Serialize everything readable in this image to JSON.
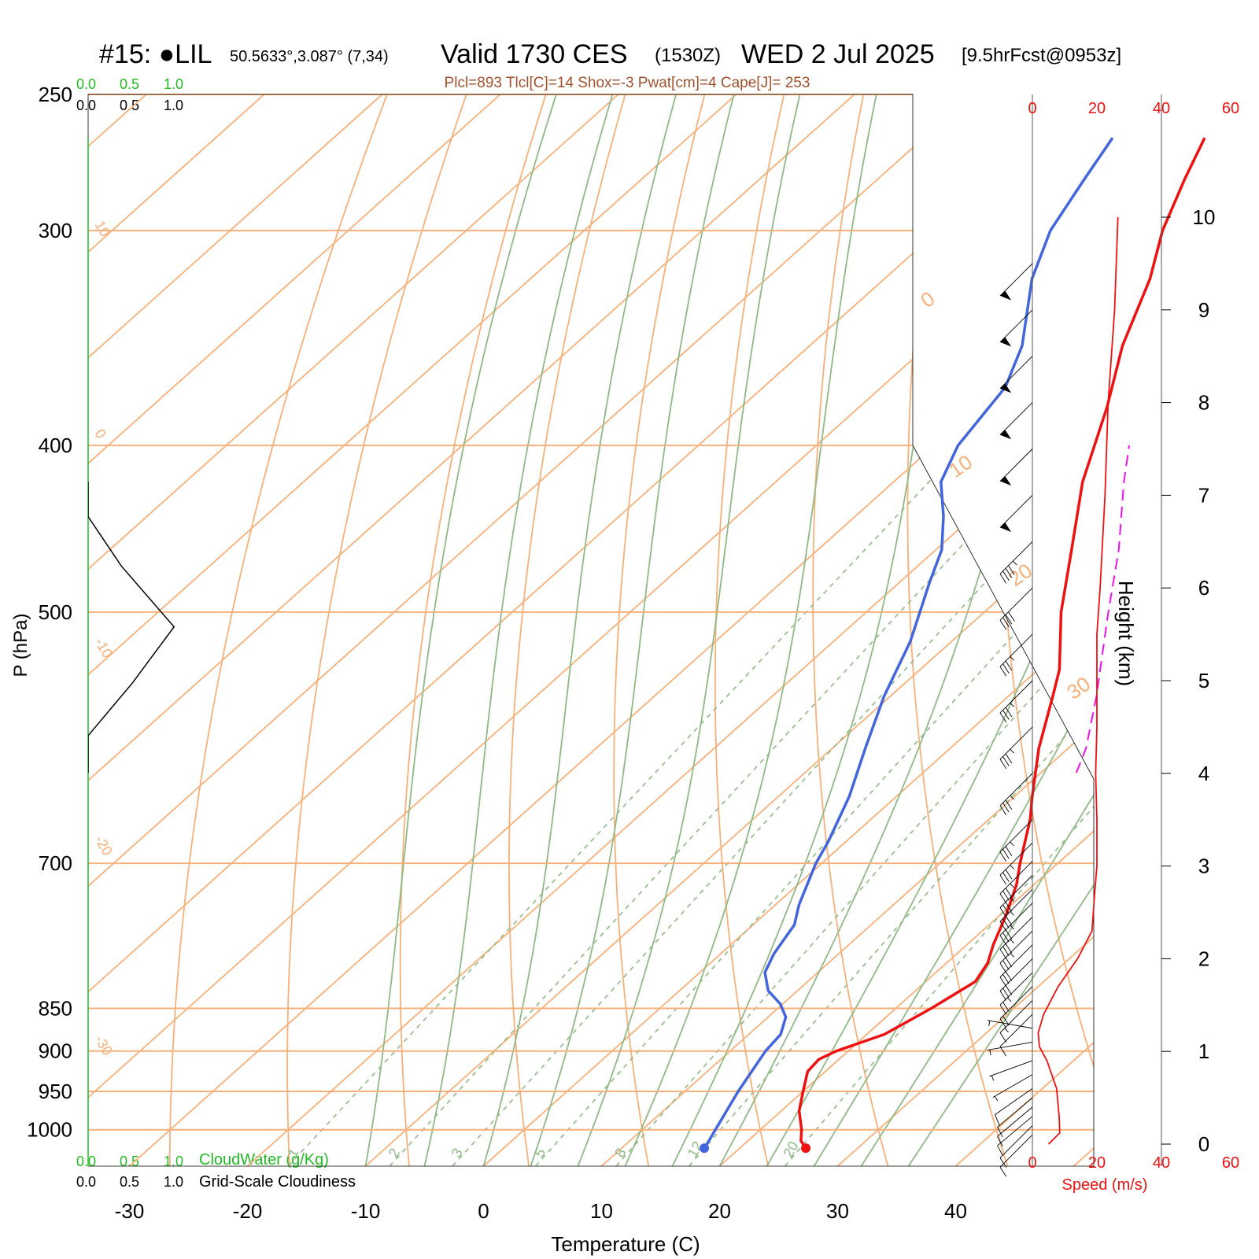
{
  "header": {
    "station_id": "#15: ●LIL",
    "location": "50.5633°,3.087° (7,34)",
    "valid_label": "Valid 1730 CES",
    "utc": "(1530Z)",
    "date": "WED 2 Jul 2025",
    "forecast": "[9.5hrFcst@0953z]",
    "indices": "Plcl=893 Tlcl[C]=14 Shox=-3 Pwat[cm]=4 Cape[J]= 253"
  },
  "cloud_scale": {
    "ticks": [
      "0.0",
      "0.5",
      "1.0"
    ],
    "cloudwater_label": "CloudWater (g/Kg)",
    "cloudiness_label": "Grid-Scale Cloudiness"
  },
  "axes": {
    "x_label": "Temperature (C)",
    "y_label": "P (hPa)",
    "height_label": "Height (km)",
    "speed_label": "Speed (m/s)"
  },
  "colors": {
    "isotherm": "#f7b07a",
    "dry_adiabat": "#8fb985",
    "moist_adiabat": "#8fb985",
    "temperature": "#ee1111",
    "dewpoint": "#4466dd",
    "parcel": "#ee11ee",
    "wind_speed": "#ee1111",
    "cloudwater": "#22bb22",
    "indices_text": "#a0522d"
  },
  "chart_data": {
    "type": "skew-t",
    "pressure_ticks": [
      250,
      300,
      400,
      500,
      700,
      850,
      900,
      950,
      1000
    ],
    "pressure_range": [
      1050,
      250
    ],
    "temperature_ticks": [
      -30,
      -20,
      -10,
      0,
      10,
      20,
      30,
      40
    ],
    "temperature_range_at_surface": [
      -33.5,
      45.5
    ],
    "height_ticks_km": [
      0,
      1,
      2,
      3,
      4,
      5,
      6,
      7,
      8,
      9,
      10
    ],
    "speed_ticks": [
      0,
      20,
      40,
      60
    ],
    "speed_range": [
      0,
      60
    ],
    "isotherm_labels": [
      "10",
      "0",
      "-10",
      "-20",
      "-30",
      "0",
      "10",
      "20",
      "30"
    ],
    "mixing_ratio_labels": [
      "1",
      "2",
      "3",
      "5",
      "8",
      "12",
      "20"
    ],
    "mixing_ratio_values": [
      1,
      2,
      3,
      5,
      8,
      12,
      20
    ],
    "temperature_profile": [
      {
        "p": 1025,
        "t": 25.6
      },
      {
        "p": 1015,
        "t": 24.5
      },
      {
        "p": 1000,
        "t": 23.5
      },
      {
        "p": 975,
        "t": 21.5
      },
      {
        "p": 950,
        "t": 20.0
      },
      {
        "p": 925,
        "t": 18.5
      },
      {
        "p": 910,
        "t": 18.3
      },
      {
        "p": 900,
        "t": 19.0
      },
      {
        "p": 880,
        "t": 21.5
      },
      {
        "p": 850,
        "t": 23.0
      },
      {
        "p": 820,
        "t": 24.2
      },
      {
        "p": 800,
        "t": 23.5
      },
      {
        "p": 780,
        "t": 22.2
      },
      {
        "p": 750,
        "t": 20.5
      },
      {
        "p": 720,
        "t": 18.5
      },
      {
        "p": 700,
        "t": 16.8
      },
      {
        "p": 660,
        "t": 13.5
      },
      {
        "p": 640,
        "t": 11.5
      },
      {
        "p": 600,
        "t": 7.5
      },
      {
        "p": 560,
        "t": 3.8
      },
      {
        "p": 540,
        "t": 1.8
      },
      {
        "p": 500,
        "t": -3.5
      },
      {
        "p": 460,
        "t": -8.5
      },
      {
        "p": 420,
        "t": -14.0
      },
      {
        "p": 380,
        "t": -19.0
      },
      {
        "p": 350,
        "t": -23.5
      },
      {
        "p": 320,
        "t": -27.5
      },
      {
        "p": 300,
        "t": -31.0
      },
      {
        "p": 280,
        "t": -34.0
      },
      {
        "p": 265,
        "t": -36.2
      }
    ],
    "dewpoint_profile": [
      {
        "p": 1025,
        "t": 17.0
      },
      {
        "p": 1015,
        "t": 16.7
      },
      {
        "p": 1000,
        "t": 16.2
      },
      {
        "p": 950,
        "t": 14.5
      },
      {
        "p": 900,
        "t": 13.0
      },
      {
        "p": 880,
        "t": 12.7
      },
      {
        "p": 860,
        "t": 11.5
      },
      {
        "p": 845,
        "t": 9.8
      },
      {
        "p": 830,
        "t": 7.5
      },
      {
        "p": 810,
        "t": 5.5
      },
      {
        "p": 790,
        "t": 4.5
      },
      {
        "p": 760,
        "t": 3.5
      },
      {
        "p": 740,
        "t": 2.0
      },
      {
        "p": 700,
        "t": -0.5
      },
      {
        "p": 680,
        "t": -1.5
      },
      {
        "p": 640,
        "t": -4.0
      },
      {
        "p": 600,
        "t": -7.2
      },
      {
        "p": 560,
        "t": -10.5
      },
      {
        "p": 520,
        "t": -13.5
      },
      {
        "p": 480,
        "t": -17.5
      },
      {
        "p": 460,
        "t": -19.5
      },
      {
        "p": 440,
        "t": -22.5
      },
      {
        "p": 420,
        "t": -26.0
      },
      {
        "p": 400,
        "t": -28.0
      },
      {
        "p": 370,
        "t": -29.5
      },
      {
        "p": 350,
        "t": -32.0
      },
      {
        "p": 320,
        "t": -37.5
      },
      {
        "p": 300,
        "t": -40.5
      },
      {
        "p": 280,
        "t": -42.5
      },
      {
        "p": 265,
        "t": -44.0
      }
    ],
    "parcel_profile": [
      {
        "p": 620,
        "t": 13.0
      },
      {
        "p": 600,
        "t": 11.5
      },
      {
        "p": 560,
        "t": 7.5
      },
      {
        "p": 500,
        "t": 0.5
      },
      {
        "p": 460,
        "t": -4.5
      },
      {
        "p": 420,
        "t": -10.5
      },
      {
        "p": 400,
        "t": -13.5
      }
    ],
    "cloudiness_profile": [
      {
        "p": 440,
        "v": 0.0
      },
      {
        "p": 470,
        "v": 0.3
      },
      {
        "p": 510,
        "v": 0.78
      },
      {
        "p": 550,
        "v": 0.4
      },
      {
        "p": 590,
        "v": 0.0
      }
    ],
    "wind_speed_profile": [
      {
        "h": 0.0,
        "s": 5.0
      },
      {
        "h": 0.12,
        "s": 8.5
      },
      {
        "h": 0.3,
        "s": 8.3
      },
      {
        "h": 0.6,
        "s": 7.5
      },
      {
        "h": 0.9,
        "s": 4.5
      },
      {
        "h": 1.05,
        "s": 2.2
      },
      {
        "h": 1.2,
        "s": 1.8
      },
      {
        "h": 1.4,
        "s": 3.5
      },
      {
        "h": 1.7,
        "s": 8.0
      },
      {
        "h": 2.0,
        "s": 14.0
      },
      {
        "h": 2.3,
        "s": 18.5
      },
      {
        "h": 2.7,
        "s": 19.3
      },
      {
        "h": 3.0,
        "s": 20.0
      },
      {
        "h": 3.5,
        "s": 20.0
      },
      {
        "h": 4.0,
        "s": 19.6
      },
      {
        "h": 4.5,
        "s": 20.0
      },
      {
        "h": 5.0,
        "s": 20.0
      },
      {
        "h": 5.5,
        "s": 20.0
      },
      {
        "h": 6.0,
        "s": 21.0
      },
      {
        "h": 7.0,
        "s": 22.5
      },
      {
        "h": 8.0,
        "s": 23.5
      },
      {
        "h": 9.0,
        "s": 25.5
      },
      {
        "h": 10.0,
        "s": 26.5
      }
    ],
    "wind_barbs": [
      {
        "h": 0.1,
        "spd": 10,
        "dir": 225
      },
      {
        "h": 0.2,
        "spd": 10,
        "dir": 225
      },
      {
        "h": 0.3,
        "spd": 10,
        "dir": 230
      },
      {
        "h": 0.4,
        "spd": 10,
        "dir": 230
      },
      {
        "h": 0.5,
        "spd": 10,
        "dir": 230
      },
      {
        "h": 0.6,
        "spd": 10,
        "dir": 235
      },
      {
        "h": 0.75,
        "spd": 5,
        "dir": 240
      },
      {
        "h": 0.9,
        "spd": 5,
        "dir": 250
      },
      {
        "h": 1.1,
        "spd": 5,
        "dir": 260
      },
      {
        "h": 1.25,
        "spd": 5,
        "dir": 280
      },
      {
        "h": 1.4,
        "spd": 10,
        "dir": 225
      },
      {
        "h": 1.55,
        "spd": 15,
        "dir": 225
      },
      {
        "h": 1.7,
        "spd": 20,
        "dir": 225
      },
      {
        "h": 1.85,
        "spd": 25,
        "dir": 225
      },
      {
        "h": 2.0,
        "spd": 30,
        "dir": 225
      },
      {
        "h": 2.15,
        "spd": 30,
        "dir": 225
      },
      {
        "h": 2.3,
        "spd": 35,
        "dir": 225
      },
      {
        "h": 2.45,
        "spd": 35,
        "dir": 225
      },
      {
        "h": 2.6,
        "spd": 35,
        "dir": 225
      },
      {
        "h": 2.75,
        "spd": 35,
        "dir": 225
      },
      {
        "h": 2.9,
        "spd": 35,
        "dir": 225
      },
      {
        "h": 3.05,
        "spd": 35,
        "dir": 225
      },
      {
        "h": 3.25,
        "spd": 35,
        "dir": 225
      },
      {
        "h": 3.5,
        "spd": 35,
        "dir": 225
      },
      {
        "h": 4.0,
        "spd": 35,
        "dir": 225
      },
      {
        "h": 4.5,
        "spd": 35,
        "dir": 225
      },
      {
        "h": 5.0,
        "spd": 35,
        "dir": 225
      },
      {
        "h": 5.5,
        "spd": 35,
        "dir": 225
      },
      {
        "h": 6.0,
        "spd": 40,
        "dir": 225
      },
      {
        "h": 6.5,
        "spd": 45,
        "dir": 225
      },
      {
        "h": 7.0,
        "spd": 50,
        "dir": 225
      },
      {
        "h": 7.5,
        "spd": 50,
        "dir": 225
      },
      {
        "h": 8.0,
        "spd": 50,
        "dir": 225
      },
      {
        "h": 8.5,
        "spd": 50,
        "dir": 225
      },
      {
        "h": 9.0,
        "spd": 50,
        "dir": 225
      },
      {
        "h": 9.5,
        "spd": 50,
        "dir": 225
      }
    ]
  }
}
